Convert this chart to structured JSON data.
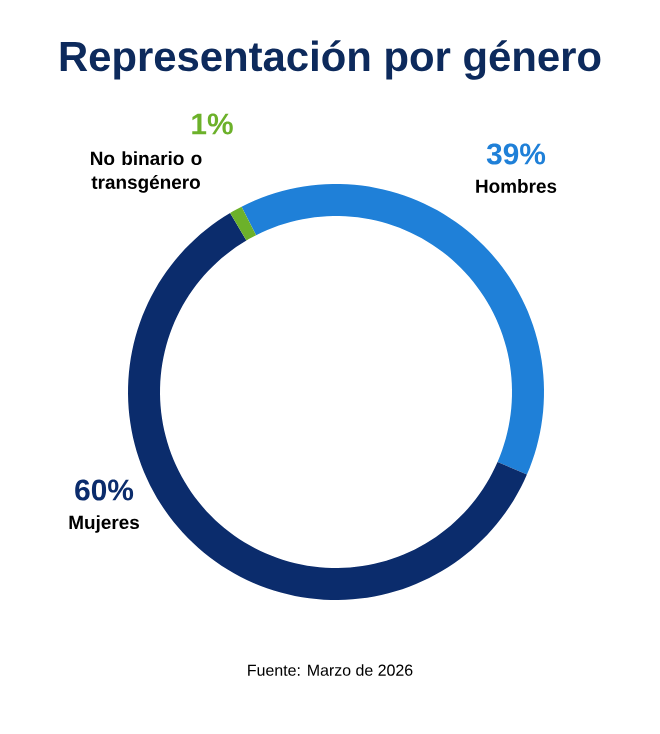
{
  "chart_data": {
    "type": "donut",
    "title": "Representación por género",
    "categories": [
      "Hombres",
      "Mujeres",
      "No binario o transgénero"
    ],
    "values": [
      39,
      60,
      1
    ],
    "value_labels": [
      "39%",
      "60%",
      "1%"
    ],
    "colors": [
      "#1f80d8",
      "#0b2c6c",
      "#6cb12a"
    ],
    "annotations": [
      "Fuente: Marzo de 2026"
    ]
  }
}
